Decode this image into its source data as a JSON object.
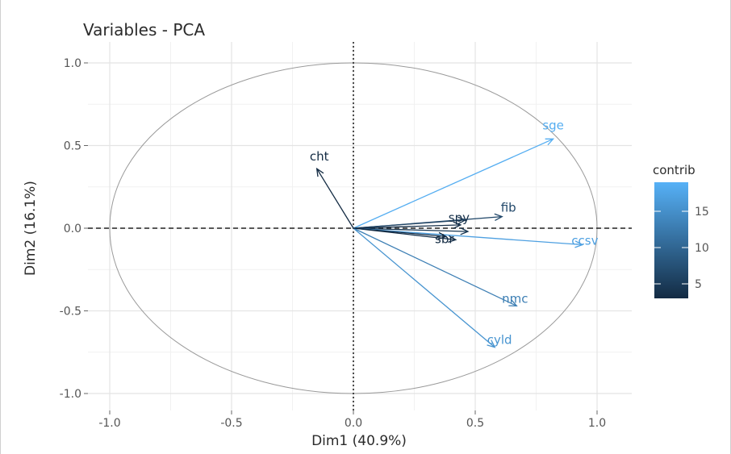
{
  "chart_data": {
    "type": "scatter",
    "subtype": "pca-variable-correlation-circle",
    "title": "Variables - PCA",
    "xlabel": "Dim1 (40.9%)",
    "ylabel": "Dim2 (16.1%)",
    "xlim": [
      -1.0,
      1.0
    ],
    "ylim": [
      -1.0,
      1.0
    ],
    "x_ticks": [
      "-1.0",
      "-0.5",
      "0.0",
      "0.5",
      "1.0"
    ],
    "y_ticks": [
      "-1.0",
      "-0.5",
      "0.0",
      "0.5",
      "1.0"
    ],
    "grid": true,
    "unit_circle": true,
    "legend": {
      "title": "contrib",
      "position": "right",
      "ticks": [
        "15",
        "10",
        "5"
      ],
      "color_low": "#132B43",
      "color_high": "#56B1F7"
    },
    "variables": [
      {
        "label": "sge",
        "x": 0.82,
        "y": 0.54,
        "contrib": 18.5
      },
      {
        "label": "cht",
        "x": -0.15,
        "y": 0.36,
        "contrib": 3.0
      },
      {
        "label": "fib",
        "x": 0.61,
        "y": 0.07,
        "contrib": 6.5
      },
      {
        "label": "ccsv",
        "x": 0.94,
        "y": -0.1,
        "contrib": 17.0
      },
      {
        "label": "nmc",
        "x": 0.67,
        "y": -0.47,
        "contrib": 13.0
      },
      {
        "label": "cyld",
        "x": 0.58,
        "y": -0.72,
        "contrib": 15.5
      },
      {
        "label": "spy",
        "x": 0.44,
        "y": 0.02,
        "contrib": 3.5
      },
      {
        "label": "sbr",
        "x": 0.38,
        "y": -0.05,
        "contrib": 3.0
      }
    ],
    "extra_arrows": [
      {
        "x": 0.46,
        "y": 0.05,
        "contrib": 4.0
      },
      {
        "x": 0.42,
        "y": -0.07,
        "contrib": 3.5
      },
      {
        "x": 0.47,
        "y": -0.02,
        "contrib": 4.5
      }
    ]
  }
}
